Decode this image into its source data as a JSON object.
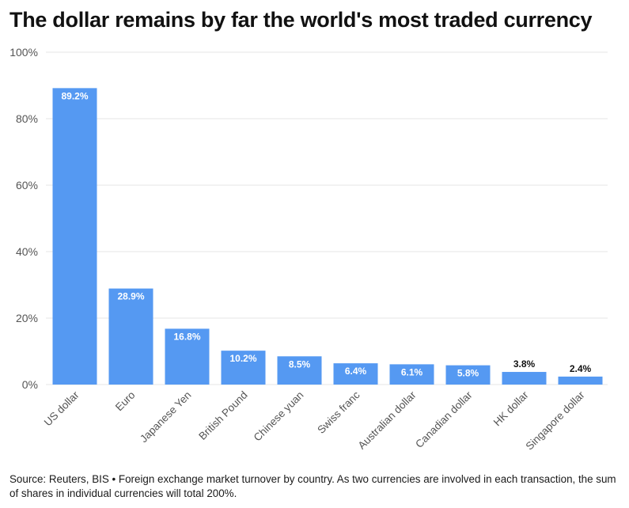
{
  "title": "The dollar remains by far the world's most traded currency",
  "footnote": "Source: Reuters, BIS • Foreign exchange market turnover by country. As two currencies are involved in each transaction, the sum of shares in individual currencies will total 200%.",
  "colors": {
    "bar": "#5599f2",
    "grid": "#e6e6e6",
    "axis_text": "#555555",
    "label_inside": "#ffffff",
    "label_outside": "#111111"
  },
  "chart_data": {
    "type": "bar",
    "categories": [
      "US dollar",
      "Euro",
      "Japanese Yen",
      "British Pound",
      "Chinese yuan",
      "Swiss franc",
      "Australian dollar",
      "Canadian dollar",
      "HK dollar",
      "Singapore dollar"
    ],
    "values": [
      89.2,
      28.9,
      16.8,
      10.2,
      8.5,
      6.4,
      6.1,
      5.8,
      3.8,
      2.4
    ],
    "data_labels": [
      "89.2%",
      "28.9%",
      "16.8%",
      "10.2%",
      "8.5%",
      "6.4%",
      "6.1%",
      "5.8%",
      "3.8%",
      "2.4%"
    ],
    "yticks": [
      "0%",
      "20%",
      "40%",
      "60%",
      "80%",
      "100%"
    ],
    "ytick_values": [
      0,
      20,
      40,
      60,
      80,
      100
    ],
    "ylim": [
      0,
      100
    ],
    "xlabel": "",
    "ylabel": "",
    "grid": true,
    "legend": "none"
  }
}
